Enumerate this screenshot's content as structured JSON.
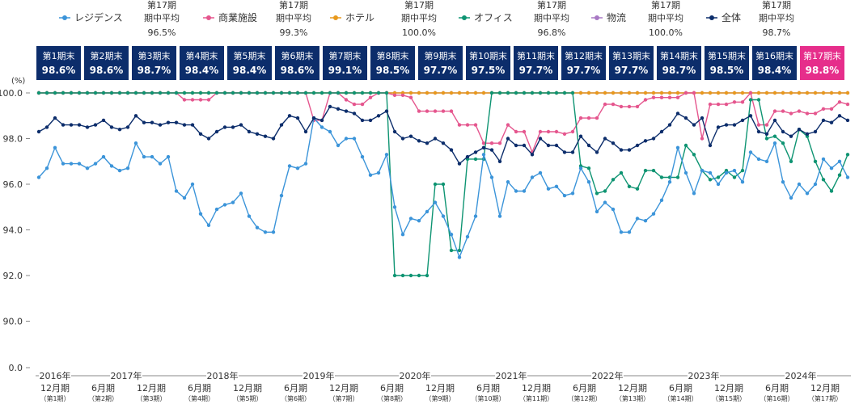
{
  "chart_data": {
    "type": "line",
    "ylabel": "(%)",
    "ylim": [
      0,
      100
    ],
    "y_ticks": [
      "100.0",
      "98.0",
      "96.0",
      "94.0",
      "92.0",
      "90.0",
      "0.0"
    ],
    "y_tick_values": [
      100,
      98,
      96,
      94,
      92,
      90,
      0
    ],
    "axis_break": "between 90 and 0",
    "grid": false,
    "legend_placement": "top",
    "years": [
      "2016年",
      "2017年",
      "2018年",
      "2019年",
      "2020年",
      "2021年",
      "2022年",
      "2023年",
      "2024年"
    ],
    "periods": [
      {
        "month": "12月期",
        "period": "（第1期）"
      },
      {
        "month": "6月期",
        "period": "（第2期）"
      },
      {
        "month": "12月期",
        "period": "（第3期）"
      },
      {
        "month": "6月期",
        "period": "（第4期）"
      },
      {
        "month": "12月期",
        "period": "（第5期）"
      },
      {
        "month": "6月期",
        "period": "（第6期）"
      },
      {
        "month": "12月期",
        "period": "（第7期）"
      },
      {
        "month": "6月期",
        "period": "（第8期）"
      },
      {
        "month": "12月期",
        "period": "（第9期）"
      },
      {
        "month": "6月期",
        "period": "（第10期）"
      },
      {
        "month": "12月期",
        "period": "（第11期）"
      },
      {
        "month": "6月期",
        "period": "（第12期）"
      },
      {
        "month": "12月期",
        "period": "（第13期）"
      },
      {
        "month": "6月期",
        "period": "（第14期）"
      },
      {
        "month": "12月期",
        "period": "（第15期）"
      },
      {
        "month": "6月期",
        "period": "（第16期）"
      },
      {
        "month": "12月期",
        "period": "（第17期）"
      }
    ],
    "period_end_boxes": [
      {
        "label": "第1期末",
        "value": "98.6%",
        "highlight": false
      },
      {
        "label": "第2期末",
        "value": "98.6%",
        "highlight": false
      },
      {
        "label": "第3期末",
        "value": "98.7%",
        "highlight": false
      },
      {
        "label": "第4期末",
        "value": "98.4%",
        "highlight": false
      },
      {
        "label": "第5期末",
        "value": "98.4%",
        "highlight": false
      },
      {
        "label": "第6期末",
        "value": "98.6%",
        "highlight": false
      },
      {
        "label": "第7期末",
        "value": "99.1%",
        "highlight": false
      },
      {
        "label": "第8期末",
        "value": "98.5%",
        "highlight": false
      },
      {
        "label": "第9期末",
        "value": "97.7%",
        "highlight": false
      },
      {
        "label": "第10期末",
        "value": "97.5%",
        "highlight": false
      },
      {
        "label": "第11期末",
        "value": "97.7%",
        "highlight": false
      },
      {
        "label": "第12期末",
        "value": "97.7%",
        "highlight": false
      },
      {
        "label": "第13期末",
        "value": "97.7%",
        "highlight": false
      },
      {
        "label": "第14期末",
        "value": "98.7%",
        "highlight": false
      },
      {
        "label": "第15期末",
        "value": "98.5%",
        "highlight": false
      },
      {
        "label": "第16期末",
        "value": "98.4%",
        "highlight": false
      },
      {
        "label": "第17期末",
        "value": "98.8%",
        "highlight": true
      }
    ],
    "colors": {
      "box_dark": "#0c2d6b",
      "box_highlight": "#e62e8b",
      "axis": "#888888",
      "text": "#333333"
    },
    "series": [
      {
        "name": "レジデンス",
        "avg_title": "第17期",
        "avg_label": "期中平均",
        "avg_value": "96.5%",
        "color": "#3b94d9",
        "values": [
          96.3,
          96.7,
          97.6,
          96.9,
          96.9,
          96.9,
          96.7,
          96.9,
          97.2,
          96.8,
          96.6,
          96.7,
          97.8,
          97.2,
          97.2,
          96.9,
          97.2,
          95.7,
          95.4,
          96.0,
          94.7,
          94.2,
          94.9,
          95.1,
          95.2,
          95.6,
          94.6,
          94.1,
          93.9,
          93.9,
          95.5,
          96.8,
          96.7,
          96.9,
          98.9,
          98.5,
          98.3,
          97.7,
          98.0,
          98.0,
          97.2,
          96.4,
          96.5,
          97.3,
          95.0,
          93.8,
          94.5,
          94.4,
          94.8,
          95.2,
          94.6,
          93.8,
          92.8,
          93.7,
          94.6,
          97.3,
          96.3,
          94.6,
          96.1,
          95.7,
          95.7,
          96.3,
          96.5,
          95.8,
          95.9,
          95.5,
          95.6,
          96.7,
          96.1,
          94.8,
          95.2,
          94.9,
          93.9,
          93.9,
          94.5,
          94.4,
          94.7,
          95.3,
          96.1,
          97.6,
          96.5,
          95.6,
          96.6,
          96.5,
          96.0,
          96.5,
          96.6,
          96.1,
          97.4,
          97.1,
          97.0,
          97.8,
          96.1,
          95.4,
          96.0,
          95.6,
          96.0,
          97.1,
          96.7,
          97.0,
          96.3
        ]
      },
      {
        "name": "商業施設",
        "avg_title": "第17期",
        "avg_label": "期中平均",
        "avg_value": "99.3%",
        "color": "#e5568e",
        "values": [
          100,
          100,
          100,
          100,
          100,
          100,
          100,
          100,
          100,
          100,
          100,
          100,
          100,
          100,
          100,
          100,
          100,
          100,
          99.7,
          99.7,
          99.7,
          99.7,
          100,
          100,
          100,
          100,
          100,
          100,
          100,
          100,
          100,
          100,
          100,
          100,
          98.8,
          98.8,
          100,
          100,
          99.7,
          99.5,
          99.5,
          99.8,
          100,
          100,
          99.9,
          99.9,
          99.8,
          99.2,
          99.2,
          99.2,
          99.2,
          99.2,
          98.6,
          98.6,
          98.6,
          97.8,
          97.8,
          97.8,
          98.6,
          98.3,
          98.3,
          97.4,
          98.3,
          98.3,
          98.3,
          98.2,
          98.3,
          98.9,
          98.9,
          98.9,
          99.5,
          99.5,
          99.4,
          99.4,
          99.4,
          99.7,
          99.8,
          99.8,
          99.8,
          99.8,
          100,
          100,
          98.0,
          99.5,
          99.5,
          99.5,
          99.6,
          99.6,
          100,
          98.6,
          98.6,
          99.2,
          99.2,
          99.1,
          99.2,
          99.1,
          99.1,
          99.3,
          99.3,
          99.6,
          99.5
        ]
      },
      {
        "name": "ホテル",
        "avg_title": "第17期",
        "avg_label": "期中平均",
        "avg_value": "100.0%",
        "color": "#e8991c",
        "values": [
          100,
          100,
          100,
          100,
          100,
          100,
          100,
          100,
          100,
          100,
          100,
          100,
          100,
          100,
          100,
          100,
          100,
          100,
          100,
          100,
          100,
          100,
          100,
          100,
          100,
          100,
          100,
          100,
          100,
          100,
          100,
          100,
          100,
          100,
          100,
          100,
          100,
          100,
          100,
          100,
          100,
          100,
          100,
          100,
          100,
          100,
          100,
          100,
          100,
          100,
          100,
          100,
          100,
          100,
          100,
          100,
          100,
          100,
          100,
          100,
          100,
          100,
          100,
          100,
          100,
          100,
          100,
          100,
          100,
          100,
          100,
          100,
          100,
          100,
          100,
          100,
          100,
          100,
          100,
          100,
          100,
          100,
          100,
          100,
          100,
          100,
          100,
          100,
          100,
          100,
          100,
          100,
          100,
          100,
          100,
          100,
          100,
          100,
          100,
          100,
          100
        ]
      },
      {
        "name": "オフィス",
        "avg_title": "第17期",
        "avg_label": "期中平均",
        "avg_value": "96.8%",
        "color": "#0e9472",
        "values": [
          100,
          100,
          100,
          100,
          100,
          100,
          100,
          100,
          100,
          100,
          100,
          100,
          100,
          100,
          100,
          100,
          100,
          100,
          100,
          100,
          100,
          100,
          100,
          100,
          100,
          100,
          100,
          100,
          100,
          100,
          100,
          100,
          100,
          100,
          100,
          100,
          100,
          100,
          100,
          100,
          100,
          100,
          100,
          100,
          92.0,
          92.0,
          92.0,
          92.0,
          92.0,
          96.0,
          96.0,
          93.1,
          93.1,
          97.1,
          97.1,
          97.1,
          100,
          100,
          100,
          100,
          100,
          100,
          100,
          100,
          100,
          100,
          100,
          96.8,
          96.7,
          95.6,
          95.7,
          96.2,
          96.5,
          95.9,
          95.8,
          96.6,
          96.6,
          96.3,
          96.3,
          96.3,
          97.7,
          97.3,
          96.6,
          96.2,
          96.3,
          96.6,
          96.3,
          96.6,
          99.7,
          99.7,
          98.0,
          98.1,
          97.8,
          97.0,
          98.4,
          98.1,
          97.0,
          96.2,
          95.7,
          96.4,
          97.3
        ]
      },
      {
        "name": "物流",
        "avg_title": "第17期",
        "avg_label": "期中平均",
        "avg_value": "100.0%",
        "color": "#a879c4",
        "values": [
          100,
          100,
          100,
          100,
          100,
          100,
          100,
          100,
          100,
          100,
          100,
          100,
          100,
          100,
          100,
          100,
          100,
          100,
          100,
          100,
          100,
          100,
          100,
          100,
          100,
          100,
          100,
          100,
          100,
          100,
          100,
          100,
          100,
          100,
          100,
          100,
          100,
          100,
          100,
          100,
          100,
          100,
          100,
          100,
          100,
          100,
          100,
          100,
          100,
          100,
          100,
          100,
          100,
          100,
          100,
          100,
          100,
          100,
          100,
          100,
          100,
          100,
          100,
          100,
          100,
          100,
          100,
          100,
          100,
          100,
          100,
          100,
          100,
          100,
          100,
          100,
          100,
          100,
          100,
          100,
          100,
          100,
          100,
          100,
          100,
          100,
          100,
          100,
          100,
          100,
          100,
          100,
          100,
          100,
          100,
          100,
          100,
          100,
          100,
          100,
          100
        ]
      },
      {
        "name": "全体",
        "avg_title": "第17期",
        "avg_label": "期中平均",
        "avg_value": "98.7%",
        "color": "#0c2d6b",
        "values": [
          98.3,
          98.5,
          98.9,
          98.6,
          98.6,
          98.6,
          98.5,
          98.6,
          98.8,
          98.5,
          98.4,
          98.5,
          99.0,
          98.7,
          98.7,
          98.6,
          98.7,
          98.7,
          98.6,
          98.6,
          98.2,
          98.0,
          98.3,
          98.5,
          98.5,
          98.6,
          98.3,
          98.2,
          98.1,
          98.0,
          98.6,
          99.0,
          98.9,
          98.3,
          98.9,
          98.8,
          99.4,
          99.3,
          99.2,
          99.1,
          98.8,
          98.8,
          99.0,
          99.2,
          98.3,
          98.0,
          98.1,
          97.9,
          97.8,
          98.0,
          97.8,
          97.5,
          96.9,
          97.2,
          97.4,
          97.6,
          97.5,
          97.0,
          98.0,
          97.7,
          97.7,
          97.3,
          98.0,
          97.7,
          97.7,
          97.4,
          97.4,
          98.1,
          97.7,
          97.4,
          98.0,
          97.8,
          97.5,
          97.5,
          97.7,
          97.9,
          98.0,
          98.3,
          98.6,
          99.1,
          98.9,
          98.6,
          98.9,
          97.7,
          98.5,
          98.6,
          98.6,
          98.8,
          99.0,
          98.3,
          98.2,
          98.8,
          98.3,
          98.1,
          98.4,
          98.2,
          98.3,
          98.8,
          98.7,
          99.0,
          98.8
        ]
      }
    ]
  }
}
